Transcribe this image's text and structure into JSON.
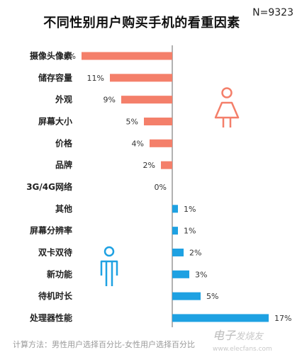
{
  "chart_data": {
    "type": "bar",
    "title": "不同性别用户购买手机的看重因素",
    "sample_size": "N=9323",
    "categories": [
      "摄像头像素",
      "储存容量",
      "外观",
      "屏幕大小",
      "价格",
      "品牌",
      "3G/4G网络",
      "其他",
      "屏幕分辨率",
      "双卡双待",
      "新功能",
      "待机时长",
      "处理器性能"
    ],
    "values": [
      -16,
      -11,
      -9,
      -5,
      -4,
      -2,
      0,
      1,
      1,
      2,
      3,
      5,
      17
    ],
    "value_labels": [
      "16%",
      "11%",
      "9%",
      "5%",
      "4%",
      "2%",
      "0%",
      "1%",
      "1%",
      "2%",
      "3%",
      "5%",
      "17%"
    ],
    "colors": {
      "female": "#f47f6a",
      "male": "#1ea1e2",
      "axis": "#666666"
    },
    "icons": {
      "female": "female-icon",
      "male": "male-icon"
    },
    "footnote": "计算方法：男性用户选择百分比-女性用户选择百分比"
  },
  "watermark": {
    "big": "电子",
    "small": "发烧友",
    "url": "www.elecfans.com"
  }
}
